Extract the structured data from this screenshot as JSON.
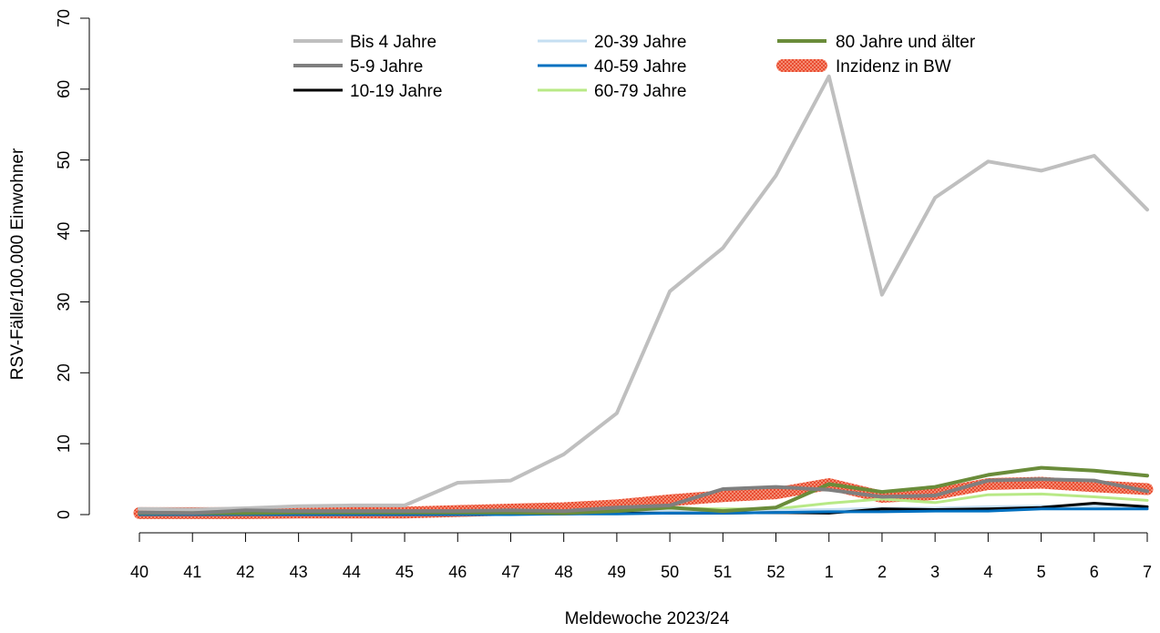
{
  "chart_data": {
    "type": "line",
    "xlabel": "Meldewoche 2023/24",
    "ylabel": "RSV-Fälle/100.000 Einwohner",
    "ylim": [
      0,
      70
    ],
    "yticks": [
      "0",
      "10",
      "20",
      "30",
      "40",
      "50",
      "60",
      "70"
    ],
    "categories": [
      "40",
      "41",
      "42",
      "43",
      "44",
      "45",
      "46",
      "47",
      "48",
      "49",
      "50",
      "51",
      "52",
      "1",
      "2",
      "3",
      "4",
      "5",
      "6",
      "7"
    ],
    "grid": false,
    "legend_position": "top",
    "series": [
      {
        "name": "Bis 4 Jahre",
        "color": "#bfbfbf",
        "values": [
          0.8,
          0.7,
          0.9,
          1.2,
          1.3,
          1.3,
          4.5,
          4.8,
          8.5,
          14.3,
          31.5,
          37.6,
          47.8,
          61.8,
          31.0,
          44.7,
          49.8,
          48.5,
          50.6,
          43.0
        ]
      },
      {
        "name": "5-9 Jahre",
        "color": "#7f7f7f",
        "values": [
          0.3,
          0.2,
          0.6,
          0.5,
          0.5,
          0.5,
          0.5,
          0.6,
          0.5,
          1.0,
          1.3,
          3.6,
          3.9,
          3.5,
          2.5,
          2.7,
          4.8,
          5.0,
          4.8,
          3.3
        ]
      },
      {
        "name": "10-19 Jahre",
        "color": "#000000",
        "values": [
          0.1,
          0.1,
          0.1,
          0.1,
          0.1,
          0.1,
          0.1,
          0.1,
          0.1,
          0.2,
          0.2,
          0.2,
          0.3,
          0.2,
          0.8,
          0.7,
          0.8,
          1.0,
          1.6,
          1.1
        ]
      },
      {
        "name": "20-39 Jahre",
        "color": "#c5dff2",
        "values": [
          0.1,
          0.1,
          0.1,
          0.1,
          0.1,
          0.1,
          0.1,
          0.2,
          0.2,
          0.3,
          0.5,
          0.5,
          0.6,
          0.7,
          0.9,
          0.9,
          1.1,
          1.2,
          1.2,
          1.0
        ]
      },
      {
        "name": "40-59 Jahre",
        "color": "#0070c0",
        "values": [
          0.0,
          0.0,
          0.0,
          0.0,
          0.0,
          0.0,
          0.0,
          0.0,
          0.1,
          0.1,
          0.2,
          0.2,
          0.3,
          0.4,
          0.4,
          0.5,
          0.5,
          0.8,
          0.8,
          0.8
        ]
      },
      {
        "name": "60-79 Jahre",
        "color": "#b8e986",
        "values": [
          0.1,
          0.1,
          0.1,
          0.1,
          0.1,
          0.2,
          0.3,
          0.3,
          0.4,
          0.6,
          0.9,
          0.8,
          0.8,
          1.6,
          2.2,
          1.7,
          2.8,
          2.9,
          2.5,
          2.0
        ]
      },
      {
        "name": "80 Jahre und älter",
        "color": "#6a8c3a",
        "values": [
          0.2,
          0.2,
          0.2,
          0.3,
          0.3,
          0.3,
          0.3,
          0.3,
          0.2,
          0.5,
          1.0,
          0.5,
          1.0,
          4.3,
          3.2,
          3.9,
          5.6,
          6.6,
          6.2,
          5.5
        ]
      },
      {
        "name": "Inzidenz in BW",
        "color": "#f0684a",
        "values": [
          0.2,
          0.2,
          0.2,
          0.3,
          0.3,
          0.3,
          0.5,
          0.7,
          0.9,
          1.3,
          2.0,
          2.6,
          3.0,
          4.3,
          2.5,
          2.9,
          4.3,
          4.5,
          4.0,
          3.6
        ]
      }
    ]
  }
}
